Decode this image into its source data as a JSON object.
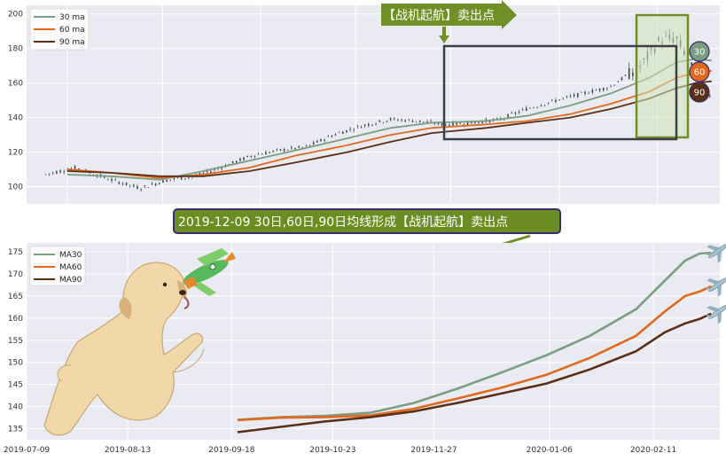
{
  "colors": {
    "ma30": "#7a9e82",
    "ma60": "#e0691d",
    "ma90": "#5a2f16",
    "candle": "#3b4650",
    "frame": "#3a3f4a",
    "zone_fill": "#cfe3b8",
    "zone_stroke": "#6f8f27",
    "banner": "#6f8f27",
    "title_bg": "#6b8e23",
    "title_border": "#3a2a6e"
  },
  "top_banner": "【战机起航】卖出点",
  "badges": [
    {
      "label": "30",
      "color": "#7a9e82"
    },
    {
      "label": "60",
      "color": "#e0691d"
    },
    {
      "label": "90",
      "color": "#5a2f16"
    }
  ],
  "middle_title": "2019-12-09 30日,60日,90日均线形成【战机起航】卖出点",
  "chart_data": [
    {
      "type": "line",
      "panel": "price",
      "x_range": [
        "2019-06-24",
        "2020-03-05"
      ],
      "ylim": [
        90,
        205
      ],
      "y_ticks": [
        100,
        120,
        140,
        160,
        180,
        200
      ],
      "grid": true,
      "legend_position": "top-left",
      "series": [
        {
          "name": "30 ma",
          "color_key": "ma30",
          "points": [
            [
              "2019-07-09",
              107
            ],
            [
              "2019-07-25",
              106
            ],
            [
              "2019-08-12",
              104
            ],
            [
              "2019-08-28",
              109
            ],
            [
              "2019-09-14",
              115
            ],
            [
              "2019-10-01",
              121
            ],
            [
              "2019-10-20",
              128
            ],
            [
              "2019-11-05",
              134
            ],
            [
              "2019-11-20",
              137
            ],
            [
              "2019-12-10",
              138
            ],
            [
              "2019-12-25",
              141
            ],
            [
              "2020-01-10",
              147
            ],
            [
              "2020-01-25",
              154
            ],
            [
              "2020-02-08",
              163
            ],
            [
              "2020-02-18",
              172
            ],
            [
              "2020-02-25",
              174
            ],
            [
              "2020-03-02",
              173
            ]
          ]
        },
        {
          "name": "60 ma",
          "color_key": "ma60",
          "points": [
            [
              "2019-07-09",
              110
            ],
            [
              "2019-07-25",
              108
            ],
            [
              "2019-08-12",
              105
            ],
            [
              "2019-08-28",
              107
            ],
            [
              "2019-09-14",
              111
            ],
            [
              "2019-10-01",
              118
            ],
            [
              "2019-10-20",
              124
            ],
            [
              "2019-11-05",
              130
            ],
            [
              "2019-11-20",
              134
            ],
            [
              "2019-12-10",
              136
            ],
            [
              "2019-12-25",
              138
            ],
            [
              "2020-01-10",
              142
            ],
            [
              "2020-01-25",
              148
            ],
            [
              "2020-02-08",
              155
            ],
            [
              "2020-02-18",
              163
            ],
            [
              "2020-02-25",
              166
            ],
            [
              "2020-03-02",
              167
            ]
          ]
        },
        {
          "name": "90 ma",
          "color_key": "ma90",
          "points": [
            [
              "2019-07-09",
              109
            ],
            [
              "2019-07-25",
              108
            ],
            [
              "2019-08-12",
              106
            ],
            [
              "2019-08-28",
              106
            ],
            [
              "2019-09-14",
              109
            ],
            [
              "2019-10-01",
              114
            ],
            [
              "2019-10-20",
              120
            ],
            [
              "2019-11-05",
              126
            ],
            [
              "2019-11-20",
              131
            ],
            [
              "2019-12-10",
              134
            ],
            [
              "2019-12-25",
              137
            ],
            [
              "2020-01-10",
              140
            ],
            [
              "2020-01-25",
              145
            ],
            [
              "2020-02-08",
              151
            ],
            [
              "2020-02-18",
              157
            ],
            [
              "2020-02-25",
              160
            ],
            [
              "2020-03-02",
              161
            ]
          ]
        }
      ],
      "price_anchors": [
        [
          "2019-07-01",
          107
        ],
        [
          "2019-07-12",
          111
        ],
        [
          "2019-07-25",
          104
        ],
        [
          "2019-08-05",
          99
        ],
        [
          "2019-08-15",
          104
        ],
        [
          "2019-08-25",
          106
        ],
        [
          "2019-09-05",
          112
        ],
        [
          "2019-09-15",
          118
        ],
        [
          "2019-09-25",
          121
        ],
        [
          "2019-10-05",
          123
        ],
        [
          "2019-10-15",
          130
        ],
        [
          "2019-10-25",
          135
        ],
        [
          "2019-11-05",
          139
        ],
        [
          "2019-11-15",
          138
        ],
        [
          "2019-11-25",
          136
        ],
        [
          "2019-12-05",
          137
        ],
        [
          "2019-12-15",
          139
        ],
        [
          "2019-12-25",
          145
        ],
        [
          "2020-01-05",
          150
        ],
        [
          "2020-01-15",
          154
        ],
        [
          "2020-01-25",
          158
        ],
        [
          "2020-02-05",
          170
        ],
        [
          "2020-02-12",
          185
        ],
        [
          "2020-02-18",
          186
        ],
        [
          "2020-02-22",
          175
        ],
        [
          "2020-02-26",
          160
        ],
        [
          "2020-03-02",
          152
        ]
      ]
    },
    {
      "type": "line",
      "panel": "moving_averages",
      "x_tick_labels": [
        "2019-07-09",
        "2019-08-13",
        "2019-09-18",
        "2019-10-23",
        "2019-11-27",
        "2020-01-06",
        "2020-02-11"
      ],
      "x_range": [
        "2019-07-09",
        "2020-03-05"
      ],
      "ylim": [
        132.5,
        177
      ],
      "y_ticks": [
        135,
        140,
        145,
        150,
        155,
        160,
        165,
        170,
        175
      ],
      "grid": true,
      "legend_position": "top-left",
      "series": [
        {
          "name": "MA30",
          "color_key": "ma30",
          "points": [
            [
              "2019-09-20",
              137.0
            ],
            [
              "2019-10-05",
              137.6
            ],
            [
              "2019-10-20",
              137.9
            ],
            [
              "2019-11-05",
              138.6
            ],
            [
              "2019-11-20",
              140.8
            ],
            [
              "2019-12-05",
              144.0
            ],
            [
              "2019-12-20",
              147.6
            ],
            [
              "2020-01-05",
              151.6
            ],
            [
              "2020-01-20",
              156.0
            ],
            [
              "2020-02-05",
              162.0
            ],
            [
              "2020-02-15",
              168.5
            ],
            [
              "2020-02-22",
              173.0
            ],
            [
              "2020-02-27",
              174.6
            ],
            [
              "2020-03-02",
              174.8
            ]
          ]
        },
        {
          "name": "MA60",
          "color_key": "ma60",
          "points": [
            [
              "2019-09-20",
              136.9
            ],
            [
              "2019-10-05",
              137.5
            ],
            [
              "2019-10-20",
              137.6
            ],
            [
              "2019-11-05",
              138.0
            ],
            [
              "2019-11-20",
              139.5
            ],
            [
              "2019-12-05",
              141.8
            ],
            [
              "2019-12-20",
              144.2
            ],
            [
              "2020-01-05",
              147.2
            ],
            [
              "2020-01-20",
              151.0
            ],
            [
              "2020-02-05",
              156.0
            ],
            [
              "2020-02-15",
              161.5
            ],
            [
              "2020-02-22",
              165.0
            ],
            [
              "2020-02-27",
              166.0
            ],
            [
              "2020-03-02",
              167.2
            ]
          ]
        },
        {
          "name": "MA90",
          "color_key": "ma90",
          "points": [
            [
              "2019-09-20",
              134.2
            ],
            [
              "2019-10-05",
              135.4
            ],
            [
              "2019-10-20",
              136.6
            ],
            [
              "2019-11-05",
              137.6
            ],
            [
              "2019-11-20",
              138.9
            ],
            [
              "2019-12-05",
              140.8
            ],
            [
              "2019-12-20",
              142.9
            ],
            [
              "2020-01-05",
              145.2
            ],
            [
              "2020-01-20",
              148.4
            ],
            [
              "2020-02-05",
              152.5
            ],
            [
              "2020-02-15",
              156.8
            ],
            [
              "2020-02-22",
              158.8
            ],
            [
              "2020-02-27",
              159.8
            ],
            [
              "2020-03-02",
              161.0
            ]
          ]
        }
      ]
    }
  ]
}
